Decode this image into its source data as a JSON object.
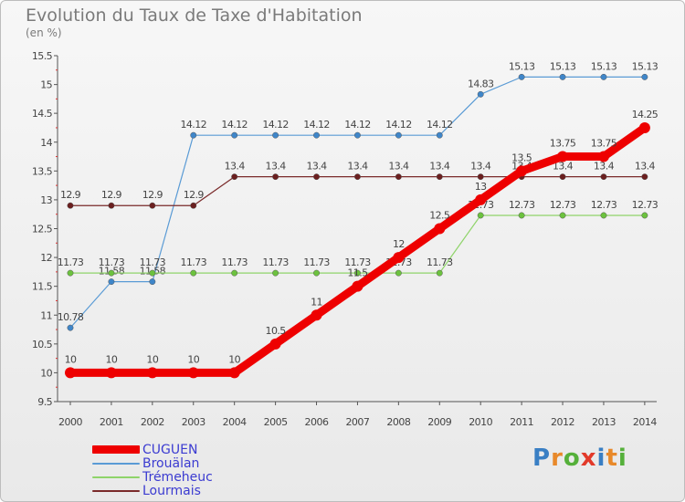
{
  "title": "Evolution du Taux de Taxe d'Habitation",
  "unit": "(en %)",
  "logo": {
    "letters": [
      "P",
      "r",
      "o",
      "x",
      "i",
      "t",
      "i"
    ],
    "colors": [
      "#3a7fc4",
      "#e8892a",
      "#55b03a",
      "#e23a2a",
      "#3a7fc4",
      "#e8892a",
      "#55b03a"
    ]
  },
  "chart_data": {
    "type": "line",
    "x": [
      "2000",
      "2001",
      "2002",
      "2003",
      "2004",
      "2005",
      "2006",
      "2007",
      "2008",
      "2009",
      "2010",
      "2011",
      "2012",
      "2013",
      "2014"
    ],
    "ylim": [
      9.5,
      15.5
    ],
    "yticks": [
      "9.5",
      "10",
      "10.5",
      "11",
      "11.5",
      "12",
      "12.5",
      "13",
      "13.5",
      "14",
      "14.5",
      "15",
      "15.5"
    ],
    "grid": false,
    "legend_position": "bottom-left",
    "series": [
      {
        "name": "Brouälan",
        "color": "#5a9bd5",
        "values": [
          10.78,
          11.58,
          11.58,
          14.12,
          14.12,
          14.12,
          14.12,
          14.12,
          14.12,
          14.12,
          14.83,
          15.13,
          15.13,
          15.13,
          15.13
        ],
        "labels": [
          "10.78",
          "11.58",
          "11.58",
          "14.12",
          "14.12",
          "14.12",
          "14.12",
          "14.12",
          "14.12",
          "14.12",
          "14.83",
          "15.13",
          "15.13",
          "15.13",
          "15.13"
        ]
      },
      {
        "name": "Trémeheuc",
        "color": "#8fd46a",
        "values": [
          11.73,
          11.73,
          11.73,
          11.73,
          11.73,
          11.73,
          11.73,
          11.73,
          11.73,
          11.73,
          12.73,
          12.73,
          12.73,
          12.73,
          12.73
        ],
        "labels": [
          "11.73",
          "11.73",
          "11.73",
          "11.73",
          "11.73",
          "11.73",
          "11.73",
          "11.73",
          "11.73",
          "11.73",
          "12.73",
          "12.73",
          "12.73",
          "12.73",
          "12.73"
        ]
      },
      {
        "name": "Lourmais",
        "color": "#7a2a2a",
        "values": [
          12.9,
          12.9,
          12.9,
          12.9,
          13.4,
          13.4,
          13.4,
          13.4,
          13.4,
          13.4,
          13.4,
          13.4,
          13.4,
          13.4,
          13.4
        ],
        "labels": [
          "12.9",
          "12.9",
          "12.9",
          "12.9",
          "13.4",
          "13.4",
          "13.4",
          "13.4",
          "13.4",
          "13.4",
          "13.4",
          "13.4",
          "13.4",
          "13.4",
          "13.4"
        ]
      },
      {
        "name": "CUGUEN",
        "color": "#ee0000",
        "values": [
          10,
          10,
          10,
          10,
          10,
          10.5,
          11,
          11.5,
          12,
          12.5,
          13,
          13.5,
          13.75,
          13.75,
          14.25
        ],
        "labels": [
          "10",
          "10",
          "10",
          "10",
          "10",
          "10.5",
          "11",
          "11.5",
          "12",
          "12.5",
          "13",
          "13.5",
          "13.75",
          "13.75",
          "14.25"
        ]
      }
    ],
    "legend": [
      {
        "name": "CUGUEN",
        "color": "#ee0000",
        "text_color": "#3b3bd1"
      },
      {
        "name": "Brouälan",
        "color": "#5a9bd5",
        "text_color": "#3b3bd1"
      },
      {
        "name": "Trémeheuc",
        "color": "#8fd46a",
        "text_color": "#3b3bd1"
      },
      {
        "name": "Lourmais",
        "color": "#7a2a2a",
        "text_color": "#3b3bd1"
      }
    ]
  }
}
